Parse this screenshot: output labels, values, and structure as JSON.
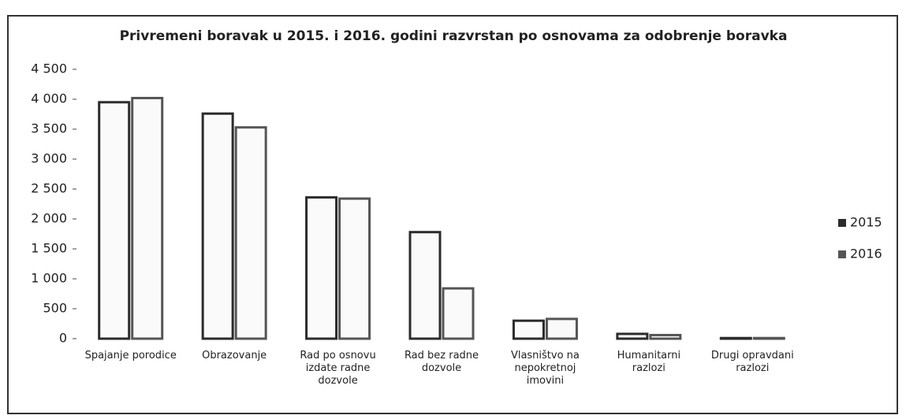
{
  "chart_data": {
    "type": "bar",
    "title": "Privremeni boravak u 2015. i 2016. godini razvrstan po osnovama za odobrenje boravka",
    "categories": [
      "Spajanje porodice",
      "Obrazovanje",
      "Rad po osnovu izdate radne dozvole",
      "Rad bez radne dozvole",
      "Vlasništvo na nepokretnoj imovini",
      "Humanitarni razlozi",
      "Drugi opravdani razlozi"
    ],
    "series": [
      {
        "name": "2015",
        "color": "#2b2b2b",
        "values": [
          3950,
          3760,
          2360,
          1780,
          300,
          80,
          10
        ]
      },
      {
        "name": "2016",
        "color": "#555555",
        "values": [
          4020,
          3530,
          2340,
          840,
          330,
          60,
          10
        ]
      }
    ],
    "ylim": [
      0,
      4500
    ],
    "yticks": [
      0,
      500,
      {
        "value": 1000,
        "label": "1 000"
      },
      {
        "value": 1500,
        "label": "1 500"
      },
      {
        "value": 2000,
        "label": "2 000"
      },
      {
        "value": 2500,
        "label": "2 500"
      },
      {
        "value": 3000,
        "label": "3 000"
      },
      {
        "value": 3500,
        "label": "3 500"
      },
      {
        "value": 4000,
        "label": "4 000"
      },
      {
        "value": 4500,
        "label": "4 500"
      }
    ],
    "grid": false,
    "legend": "right"
  }
}
